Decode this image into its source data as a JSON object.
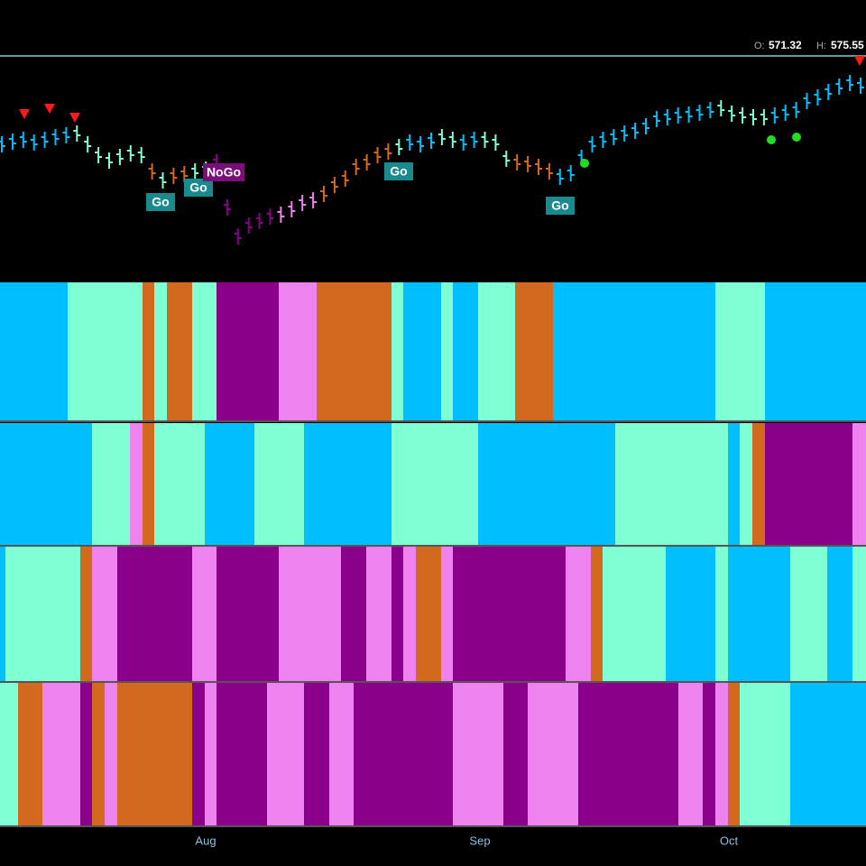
{
  "header": {
    "open_label": "O:",
    "open": 571.32,
    "high_label": "H:",
    "high": 575.55
  },
  "annotations": [
    "Go",
    "Go",
    "NoGo",
    "Go",
    "Go"
  ],
  "x_axis": [
    "Aug",
    "Sep",
    "Oct"
  ]
}
